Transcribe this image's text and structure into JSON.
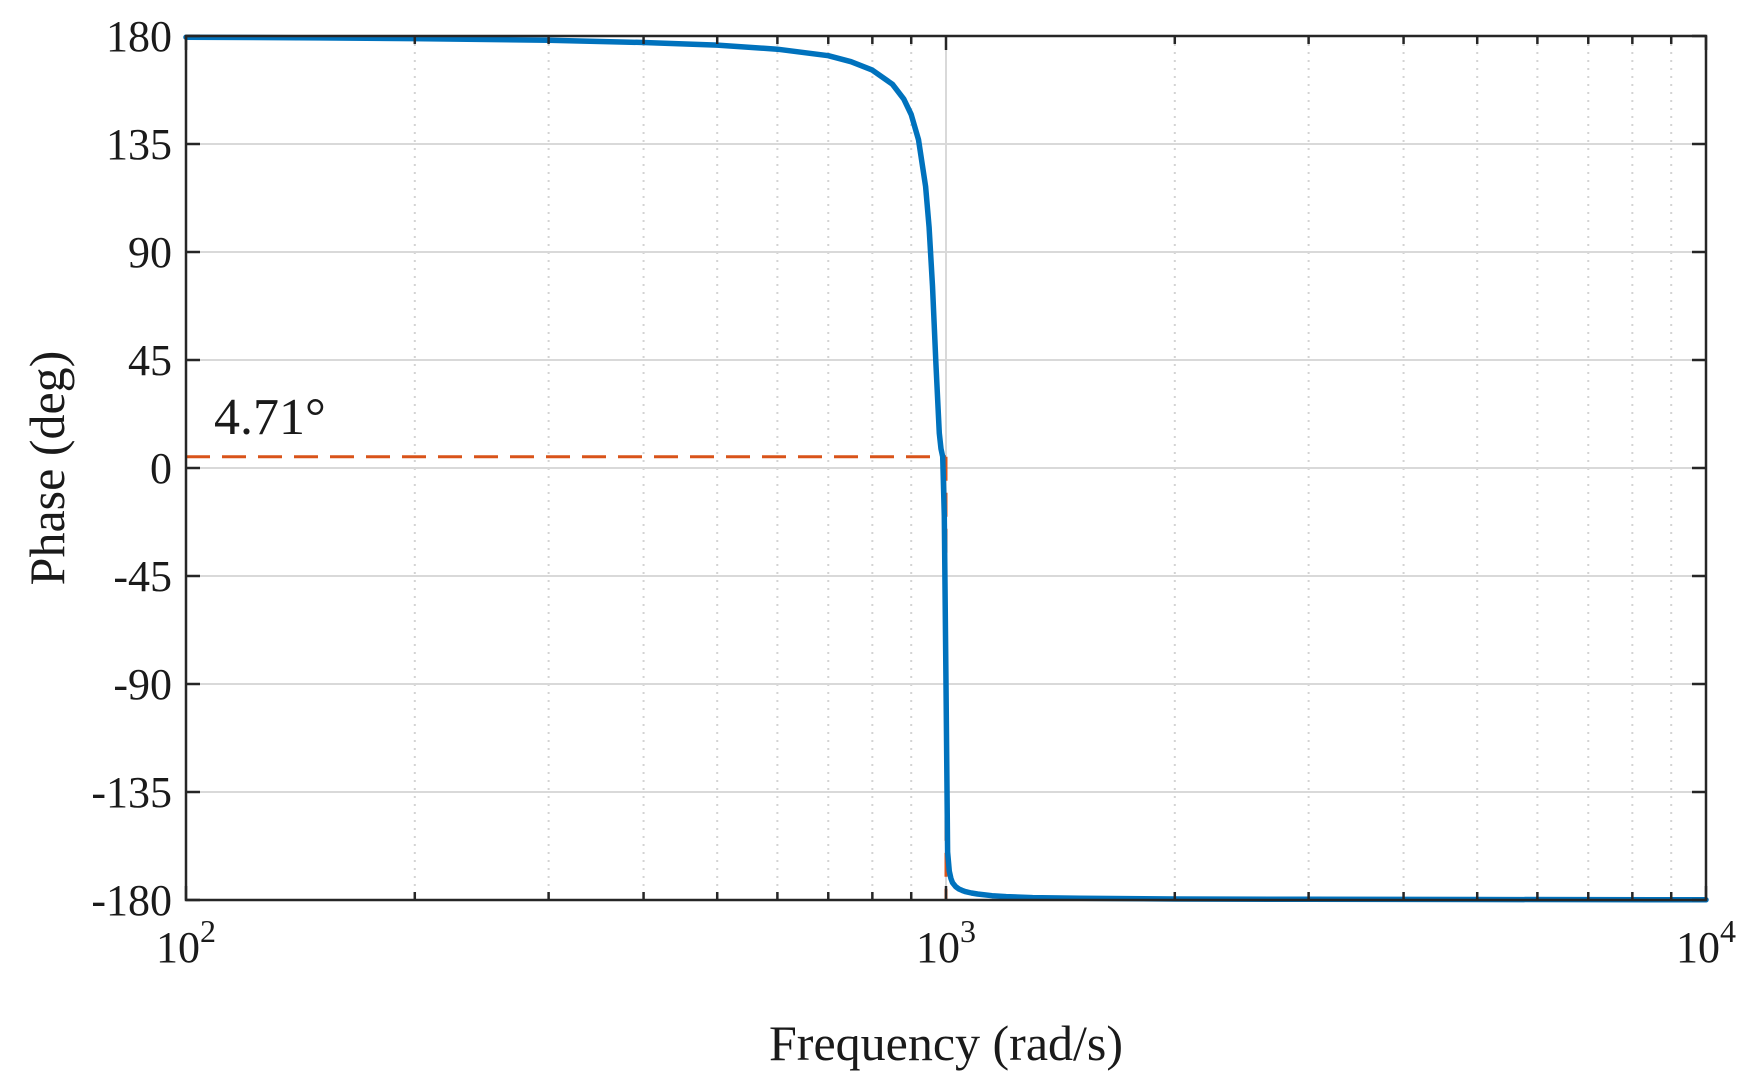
{
  "chart_data": {
    "type": "line",
    "title": "",
    "xlabel": "Frequency (rad/s)",
    "ylabel": "Phase (deg)",
    "xscale": "log",
    "xlim": [
      100,
      10000
    ],
    "ylim": [
      -180,
      180
    ],
    "grid": true,
    "legend": "none",
    "x_ticks": [
      {
        "value": 100,
        "base": "10",
        "exp": "2"
      },
      {
        "value": 1000,
        "base": "10",
        "exp": "3"
      },
      {
        "value": 10000,
        "base": "10",
        "exp": "4"
      }
    ],
    "y_ticks": [
      {
        "value": 180,
        "label": "180"
      },
      {
        "value": 135,
        "label": "135"
      },
      {
        "value": 90,
        "label": "90"
      },
      {
        "value": 45,
        "label": "45"
      },
      {
        "value": 0,
        "label": "0"
      },
      {
        "value": -45,
        "label": "-45"
      },
      {
        "value": -90,
        "label": "-90"
      },
      {
        "value": -135,
        "label": "-135"
      },
      {
        "value": -180,
        "label": "-180"
      }
    ],
    "series": [
      {
        "color": "#0072BD",
        "x": [
          100,
          150,
          200,
          300,
          400,
          500,
          600,
          700,
          750,
          800,
          850,
          880,
          900,
          920,
          940,
          950,
          960,
          970,
          980,
          985,
          990,
          995,
          1000,
          1005,
          1010,
          1015,
          1020,
          1030,
          1040,
          1050,
          1060,
          1080,
          1100,
          1150,
          1200,
          1300,
          1500,
          2000,
          3000,
          5000,
          10000
        ],
        "y": [
          179.5,
          179.2,
          178.9,
          178.2,
          177.3,
          176.2,
          174.5,
          171.8,
          169.3,
          165.8,
          159.9,
          153.7,
          147.3,
          136.8,
          117.3,
          100.3,
          75.8,
          43.6,
          14.5,
          8.0,
          4.71,
          -20,
          -90,
          -160,
          -168,
          -171,
          -172.8,
          -174.5,
          -175.4,
          -176,
          -176.5,
          -177.1,
          -177.5,
          -178.2,
          -178.6,
          -179,
          -179.3,
          -179.6,
          -179.7,
          -179.8,
          -179.9
        ]
      }
    ],
    "annotations": [
      {
        "text": "4.71°",
        "color": "#D95319",
        "marker_x": 1000,
        "marker_y": 4.71
      }
    ]
  }
}
